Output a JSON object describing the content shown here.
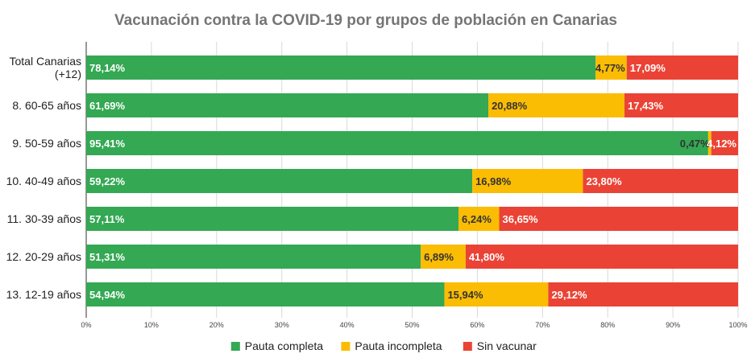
{
  "chart_data": {
    "type": "bar",
    "orientation": "horizontal",
    "stacked": true,
    "title": "Vacunación contra la COVID-19 por grupos de población en Canarias",
    "categories": [
      [
        "Total Canarias",
        "(+12)"
      ],
      [
        "8. 60-65 años"
      ],
      [
        "9. 50-59 años"
      ],
      [
        "10. 40-49 años"
      ],
      [
        "11. 30-39 años"
      ],
      [
        "12. 20-29 años"
      ],
      [
        "13. 12-19 años"
      ]
    ],
    "series": [
      {
        "name": "Pauta completa",
        "color": "#34a853",
        "label_color": "#ffffff",
        "values": [
          78.14,
          61.69,
          95.41,
          59.22,
          57.11,
          51.31,
          54.94
        ],
        "labels": [
          "78,14%",
          "61,69%",
          "95,41%",
          "59,22%",
          "57,11%",
          "51,31%",
          "54,94%"
        ]
      },
      {
        "name": "Pauta incompleta",
        "color": "#fbbc04",
        "label_color": "#333333",
        "values": [
          4.77,
          20.88,
          0.47,
          16.98,
          6.24,
          6.89,
          15.94
        ],
        "labels": [
          "4,77%",
          "20,88%",
          "0,47%",
          "16,98%",
          "6,24%",
          "6,89%",
          "15,94%"
        ]
      },
      {
        "name": "Sin vacunar",
        "color": "#ea4335",
        "label_color": "#ffffff",
        "values": [
          17.09,
          17.43,
          4.12,
          23.8,
          36.65,
          41.8,
          29.12
        ],
        "labels": [
          "17,09%",
          "17,43%",
          "4,12%",
          "23,80%",
          "36,65%",
          "41,80%",
          "29,12%"
        ]
      }
    ],
    "xlim": [
      0,
      100
    ],
    "xticks": [
      0,
      10,
      20,
      30,
      40,
      50,
      60,
      70,
      80,
      90,
      100
    ],
    "xtick_labels": [
      "0%",
      "10%",
      "20%",
      "30%",
      "40%",
      "50%",
      "60%",
      "70%",
      "80%",
      "90%",
      "100%"
    ],
    "grid": true,
    "legend_position": "bottom"
  }
}
